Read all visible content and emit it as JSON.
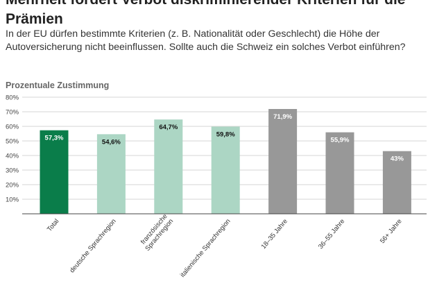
{
  "header": {
    "title": "Mehrheit fordert Verbot diskriminierender Kriterien für die Prämien",
    "subtitle": "In der EU dürfen bestimmte Kriterien (z. B. Nationalität oder Geschlecht) die Höhe der Autoversicherung nicht beeinflussen. Sollte auch die Schweiz ein solches Verbot einführen?"
  },
  "colors": {
    "total": "#0a7d4a",
    "region": "#acd6c4",
    "age": "#989898",
    "grid": "#d4d4d4",
    "axis": "#444444"
  },
  "chart_data": {
    "type": "bar",
    "title": "Prozentuale Zustimmung",
    "categories": [
      "Total",
      "deutsche Sprachregion",
      "französische Sprachregion",
      "italienische Sprachregion",
      "18–35 Jahre",
      "36–55 Jahre",
      "56+ Jahre"
    ],
    "values": [
      57.3,
      54.6,
      64.7,
      59.8,
      71.9,
      55.9,
      43
    ],
    "value_labels": [
      "57,3%",
      "54,6%",
      "64,7%",
      "59,8%",
      "71,9%",
      "55,9%",
      "43%"
    ],
    "bar_groups": [
      "total",
      "region",
      "region",
      "region",
      "age",
      "age",
      "age"
    ],
    "category_label_lines": [
      [
        "Total"
      ],
      [
        "deutsche Sprachregion"
      ],
      [
        "französische",
        "Sprachregion"
      ],
      [
        "italienische Sprachregion"
      ],
      [
        "18–35 Jahre"
      ],
      [
        "36–55 Jahre"
      ],
      [
        "56+ Jahre"
      ]
    ],
    "ylim": [
      0,
      80
    ],
    "yticks": [
      10,
      20,
      30,
      40,
      50,
      60,
      70,
      80
    ],
    "ytick_labels": [
      "10%",
      "20%",
      "30%",
      "40%",
      "50%",
      "60%",
      "70%",
      "80%"
    ],
    "grid": true,
    "xlabel": "",
    "ylabel": ""
  }
}
